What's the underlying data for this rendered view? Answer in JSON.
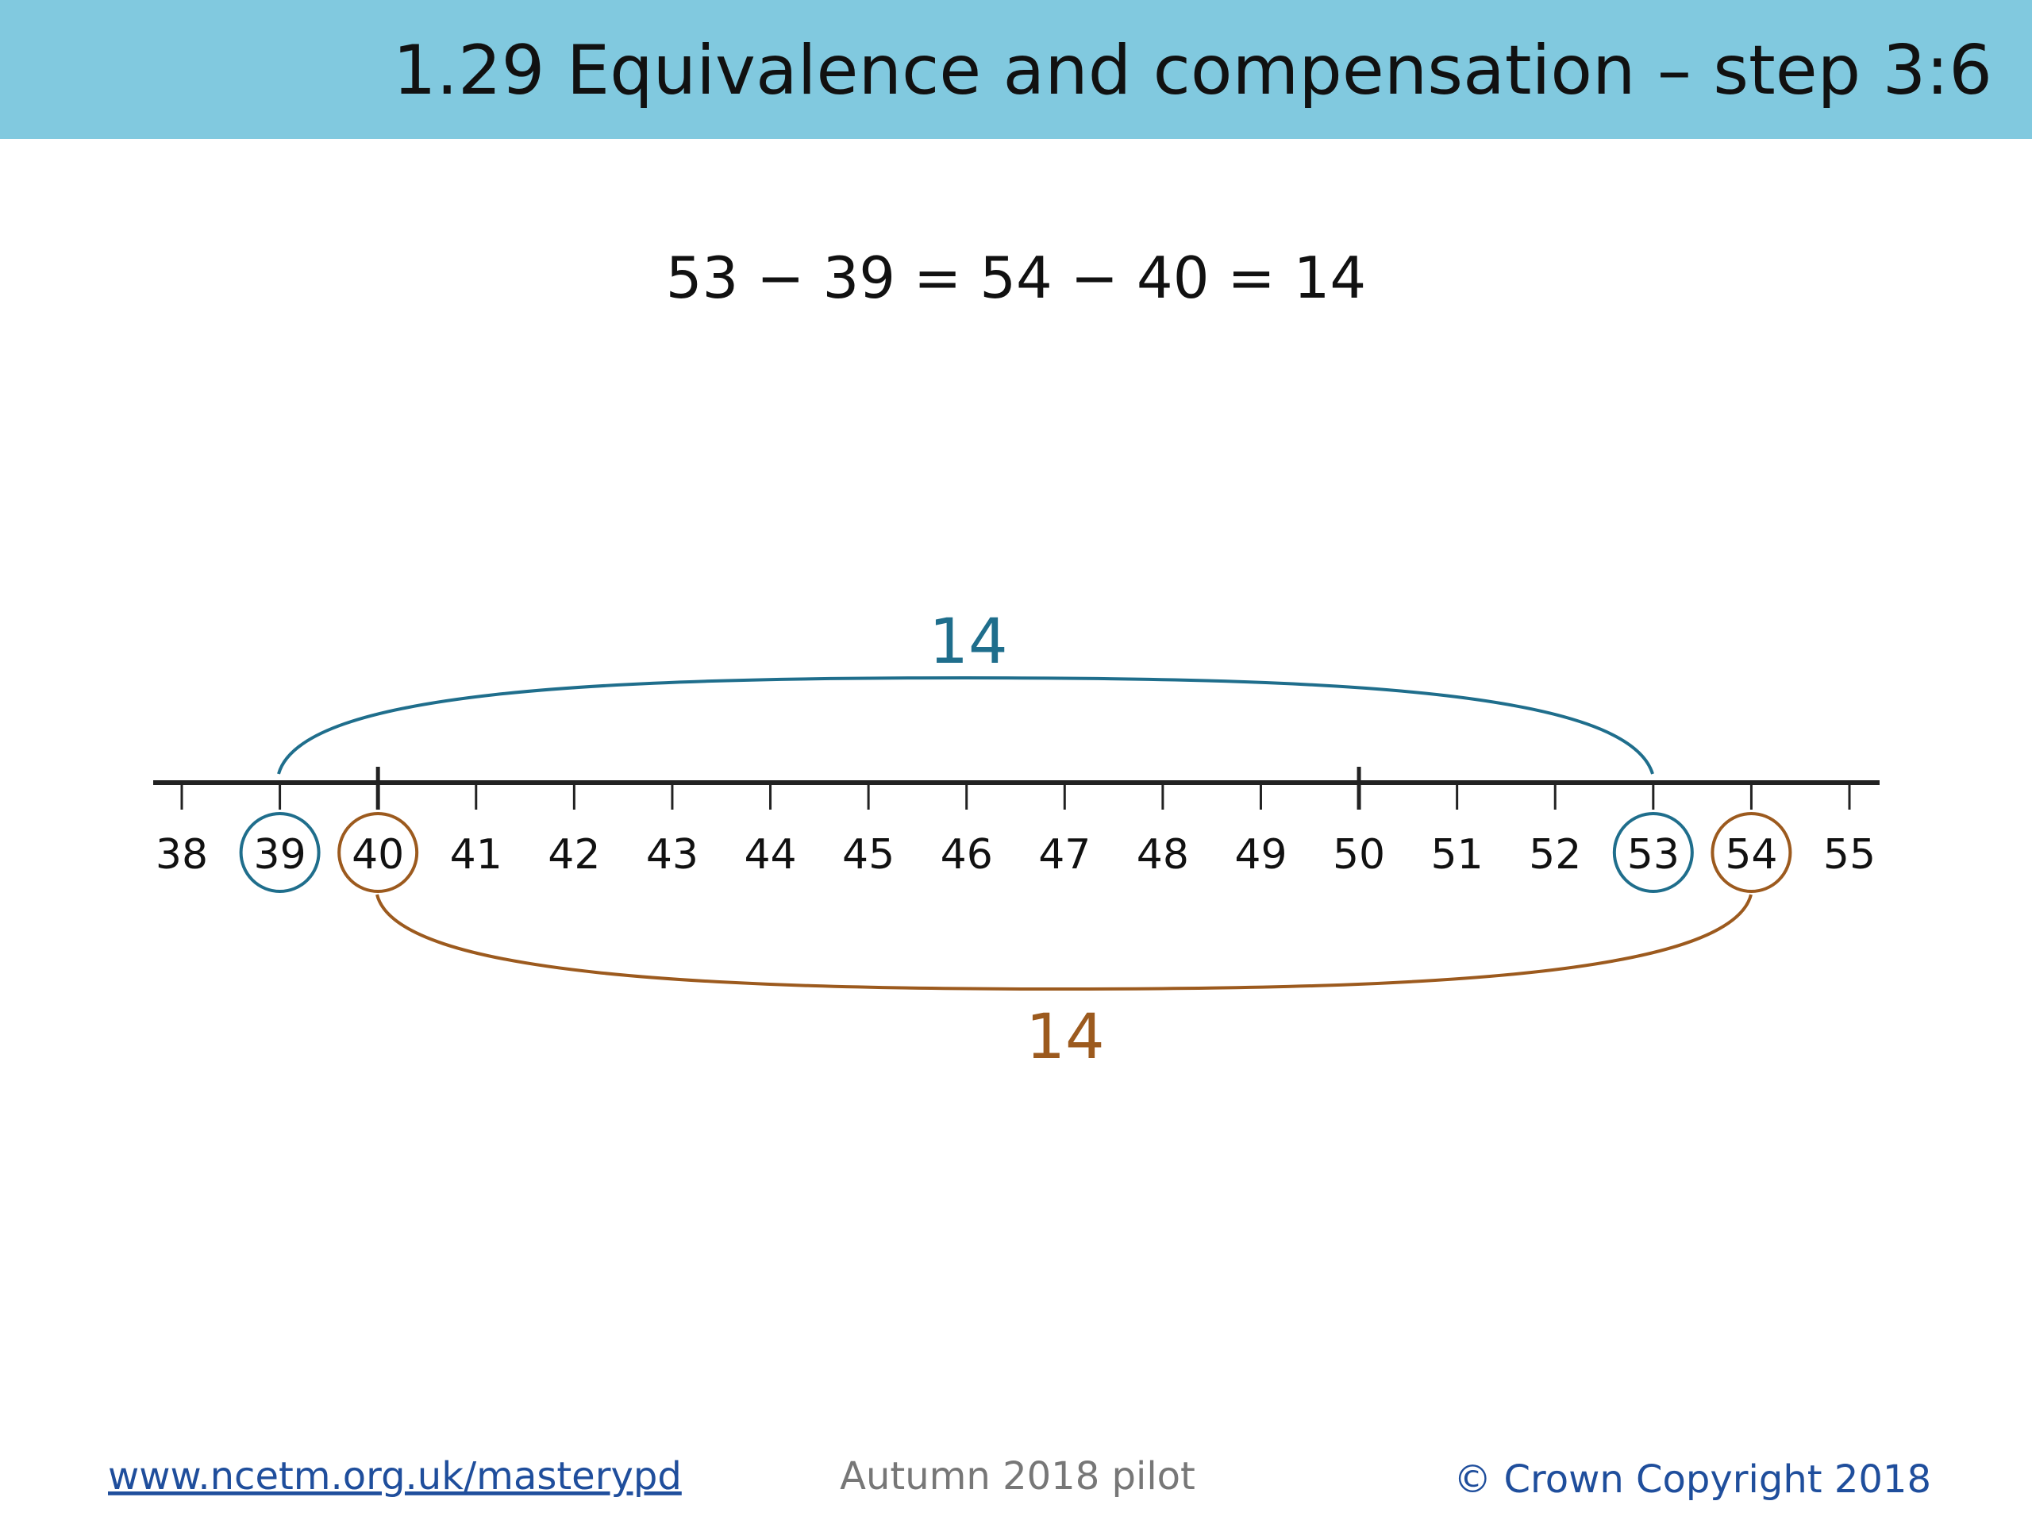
{
  "header": {
    "title": "1.29 Equivalence and compensation – step 3:6"
  },
  "equation": "53 − 39 = 54 − 40 = 14",
  "number_line": {
    "labels": [
      "38",
      "39",
      "40",
      "41",
      "42",
      "43",
      "44",
      "45",
      "46",
      "47",
      "48",
      "49",
      "50",
      "51",
      "52",
      "53",
      "54",
      "55"
    ]
  },
  "arcs": [
    {
      "label": "14",
      "color": "#1f6e8c"
    },
    {
      "label": "14",
      "color": "#9c5a1e"
    }
  ],
  "footer": {
    "link": "www.ncetm.org.uk/masterypd",
    "center": "Autumn 2018 pilot",
    "right": "© Crown Copyright 2018"
  }
}
